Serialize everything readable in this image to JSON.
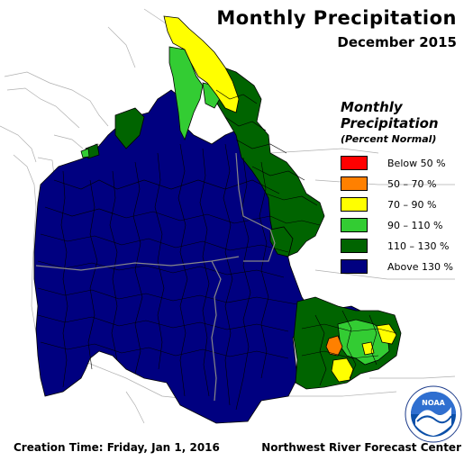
{
  "title": "Monthly Precipitation",
  "subtitle": "December 2015",
  "legend": {
    "title_line1": "Monthly",
    "title_line2": "Precipitation",
    "subtitle": "(Percent Normal)",
    "items": [
      {
        "label": "Below 50 %",
        "color": "#ff0000"
      },
      {
        "label": "50 – 70 %",
        "color": "#ff8000"
      },
      {
        "label": "70 – 90 %",
        "color": "#ffff00"
      },
      {
        "label": "90 – 110 %",
        "color": "#33cc33"
      },
      {
        "label": "110 – 130 %",
        "color": "#006400"
      },
      {
        "label": "Above 130 %",
        "color": "#000080"
      }
    ]
  },
  "footer": {
    "creation_time": "Creation Time: Friday, Jan 1, 2016",
    "center": "Northwest River Forecast Center"
  },
  "logo": {
    "text": "NOAA",
    "name": "noaa-logo"
  },
  "colors": {
    "land_outline": "#999999",
    "state_border": "#888888",
    "basin_line": "#000000"
  }
}
